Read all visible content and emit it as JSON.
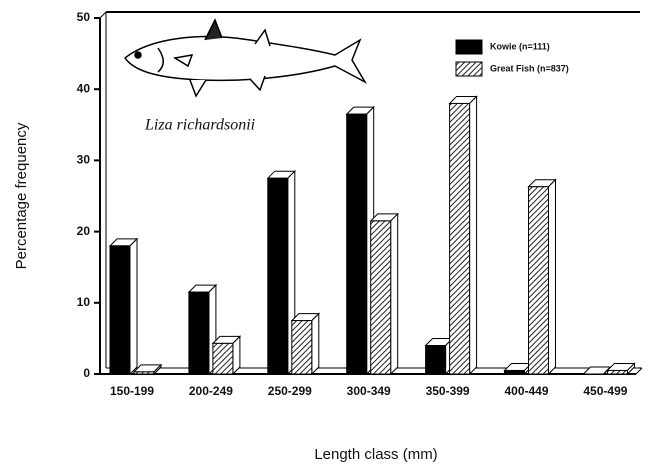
{
  "chart_data": {
    "type": "bar",
    "x_label": "Length class (mm)",
    "y_label": "Percentage frequency",
    "annotation": "Liza richardsonii",
    "categories": [
      "150-199",
      "200-249",
      "250-299",
      "300-349",
      "350-399",
      "400-449",
      "450-499"
    ],
    "series": [
      {
        "name": "Kowie (n=111)",
        "color": "#000000",
        "values": [
          18,
          11.5,
          27.5,
          36.5,
          4,
          0.5,
          0
        ]
      },
      {
        "name": "Great Fish (n=837)",
        "color": "hatch",
        "values": [
          0.3,
          4.3,
          7.5,
          21.5,
          38,
          26.3,
          0.5
        ]
      }
    ],
    "ylim": [
      0,
      50
    ],
    "yticks": [
      0,
      10,
      20,
      30,
      40,
      50
    ]
  }
}
